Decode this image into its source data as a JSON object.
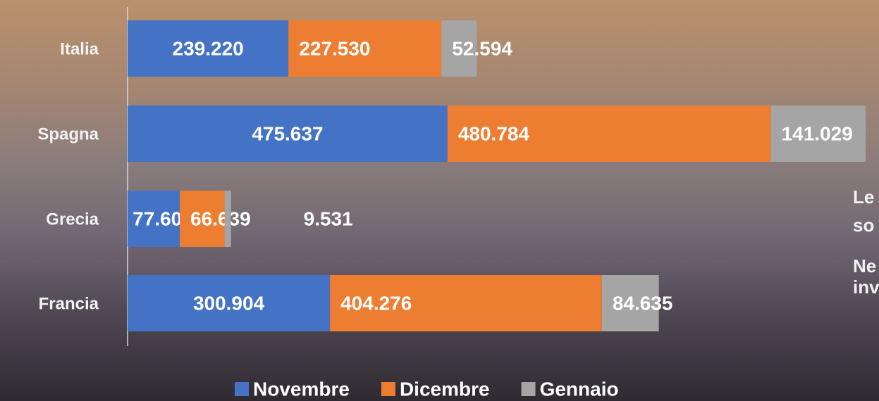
{
  "chart_data": {
    "type": "stacked-bar-horizontal",
    "categories": [
      "Italia",
      "Spagna",
      "Grecia",
      "Francia"
    ],
    "series": [
      {
        "name": "Novembre",
        "color": "#4472c4",
        "values": [
          239220,
          475637,
          77608,
          300904
        ],
        "value_labels": [
          "239.220",
          "475.637",
          "77.608",
          "300.904"
        ]
      },
      {
        "name": "Dicembre",
        "color": "#ed7d31",
        "values": [
          227530,
          480784,
          66639,
          404276
        ],
        "value_labels": [
          "227.530",
          "480.784",
          "66.639",
          "404.276"
        ]
      },
      {
        "name": "Gennaio",
        "color": "#a5a5a5",
        "values": [
          52594,
          141029,
          9531,
          84635
        ],
        "value_labels": [
          "52.594",
          "141.029",
          "9.531",
          "84.635"
        ]
      }
    ],
    "xlim": [
      0,
      1100000
    ],
    "legend": "bottom",
    "annotations": [
      "Le",
      "so",
      "Ne",
      "inv"
    ]
  }
}
